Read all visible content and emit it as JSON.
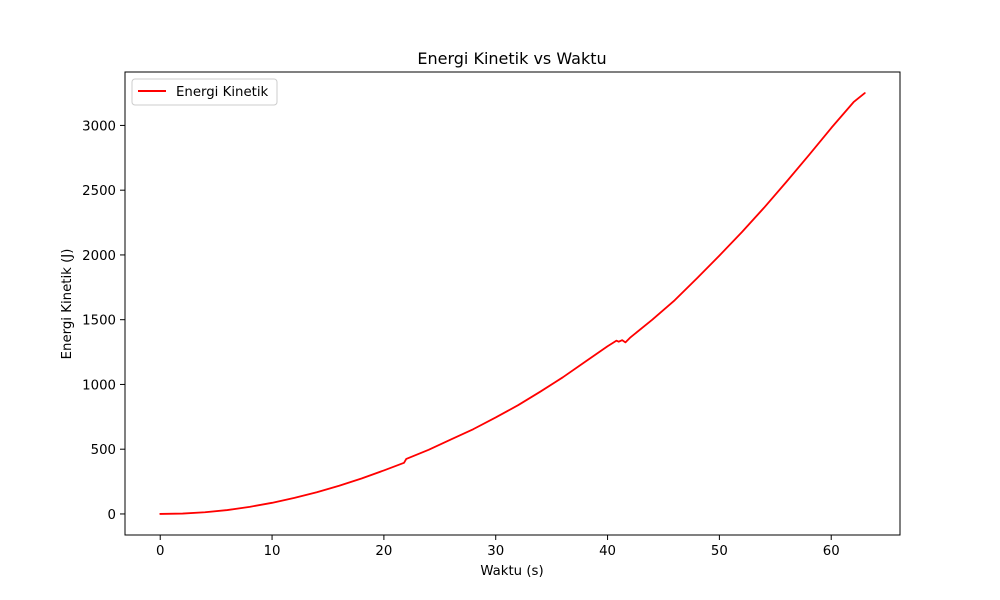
{
  "chart_data": {
    "type": "line",
    "title": "Energi Kinetik vs Waktu",
    "xlabel": "Waktu (s)",
    "ylabel": "Energi Kinetik (J)",
    "xlim": [
      -3.15,
      66.15
    ],
    "ylim": [
      -162.5,
      3412.5
    ],
    "xticks": [
      0,
      10,
      20,
      30,
      40,
      50,
      60
    ],
    "yticks": [
      0,
      500,
      1000,
      1500,
      2000,
      2500,
      3000
    ],
    "xtick_labels": [
      "0",
      "10",
      "20",
      "30",
      "40",
      "50",
      "60"
    ],
    "ytick_labels": [
      "0",
      "500",
      "1000",
      "1500",
      "2000",
      "2500",
      "3000"
    ],
    "grid": false,
    "legend_position": "top-left",
    "series": [
      {
        "name": "Energi Kinetik",
        "color": "#ff0000",
        "x": [
          0,
          2,
          4,
          6,
          8,
          10,
          12,
          14,
          16,
          18,
          20,
          21.8,
          22,
          24,
          26,
          28,
          30,
          32,
          34,
          36,
          38,
          40,
          40.8,
          41.0,
          41.3,
          41.6,
          42,
          44,
          46,
          48,
          50,
          52,
          54,
          56,
          58,
          60,
          62,
          63
        ],
        "y": [
          0,
          3,
          13,
          30,
          55,
          86,
          124,
          168,
          218,
          274,
          336,
          395,
          425,
          495,
          575,
          655,
          745,
          840,
          945,
          1055,
          1175,
          1295,
          1338,
          1330,
          1342,
          1325,
          1360,
          1500,
          1650,
          1820,
          1995,
          2175,
          2365,
          2565,
          2770,
          2980,
          3180,
          3250
        ]
      }
    ]
  }
}
